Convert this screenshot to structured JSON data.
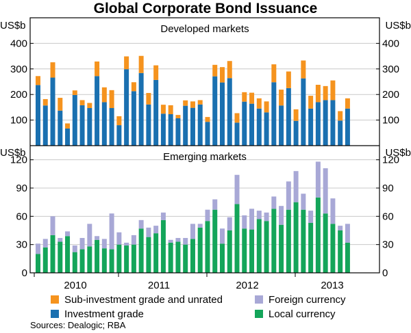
{
  "chart_data": {
    "type": "bar",
    "title": "Global Corporate Bond Issuance",
    "x_tick_labels": [
      "2010",
      "2011",
      "2012",
      "2013"
    ],
    "panels": [
      {
        "title": "Developed markets",
        "unit_label": "US$b",
        "ylim": [
          0,
          500
        ],
        "y_ticks": [
          100,
          200,
          300,
          400
        ],
        "y_tick_labels": [
          "100",
          "200",
          "300",
          "400"
        ],
        "series": [
          {
            "name": "Investment grade",
            "color": "#1a70b0",
            "values": [
              237,
              157,
              266,
              137,
              67,
              198,
              158,
              147,
              272,
              170,
              147,
              80,
              299,
              213,
              284,
              161,
              257,
              125,
              123,
              107,
              156,
              148,
              161,
              93,
              271,
              247,
              264,
              90,
              172,
              164,
              145,
              130,
              248,
              157,
              225,
              97,
              263,
              145,
              170,
              178,
              178,
              98,
              145
            ]
          },
          {
            "name": "Sub-investment grade and unrated",
            "color": "#f5931e",
            "values": [
              35,
              25,
              60,
              50,
              20,
              18,
              20,
              20,
              57,
              58,
              70,
              35,
              50,
              35,
              67,
              45,
              57,
              35,
              35,
              13,
              21,
              25,
              17,
              19,
              45,
              60,
              67,
              37,
              37,
              43,
              40,
              43,
              70,
              62,
              65,
              45,
              70,
              50,
              68,
              55,
              77,
              37,
              40
            ]
          }
        ]
      },
      {
        "title": "Emerging markets",
        "unit_label": "US$b",
        "ylim": [
          0,
          135
        ],
        "y_ticks": [
          0,
          30,
          60,
          90,
          120
        ],
        "y_tick_labels": [
          "0",
          "30",
          "60",
          "90",
          "120"
        ],
        "series": [
          {
            "name": "Local currency",
            "color": "#14a55a",
            "values": [
              20,
              27,
              40,
              33,
              39,
              22,
              25,
              28,
              35,
              26,
              25,
              30,
              29,
              30,
              47,
              38,
              42,
              56,
              32,
              33,
              30,
              36,
              48,
              55,
              67,
              31,
              45,
              73,
              47,
              46,
              57,
              55,
              68,
              51,
              67,
              75,
              67,
              53,
              80,
              63,
              52,
              45,
              32
            ]
          },
          {
            "name": "Foreign currency",
            "color": "#a8a8d6",
            "values": [
              11,
              9,
              20,
              4,
              5,
              7,
              12,
              24,
              4,
              10,
              38,
              13,
              3,
              10,
              9,
              10,
              8,
              8,
              3,
              4,
              7,
              16,
              4,
              12,
              11,
              16,
              14,
              31,
              14,
              22,
              9,
              9,
              13,
              20,
              30,
              33,
              17,
              13,
              38,
              48,
              27,
              5,
              20
            ]
          }
        ]
      }
    ],
    "legend": [
      {
        "label": "Sub-investment grade and unrated",
        "color": "#f5931e"
      },
      {
        "label": "Foreign currency",
        "color": "#a8a8d6"
      },
      {
        "label": "Investment grade",
        "color": "#1a70b0"
      },
      {
        "label": "Local currency",
        "color": "#14a55a"
      }
    ],
    "source": "Sources: Dealogic; RBA"
  }
}
